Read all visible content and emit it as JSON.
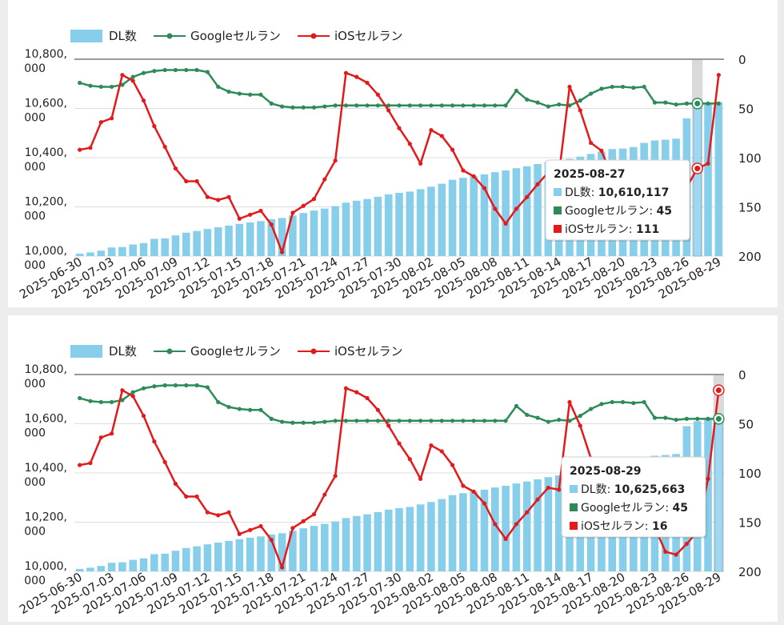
{
  "legend": {
    "dl": "DL数",
    "google": "Googleセルラン",
    "ios": "iOSセルラン"
  },
  "colors": {
    "bar": "#87ceeb",
    "google": "#2e8b57",
    "ios": "#e31a1c",
    "grid": "#dddddd"
  },
  "chart_data": [
    {
      "type": "bar",
      "combo": true,
      "x": [
        "2025-06-30",
        "2025-07-01",
        "2025-07-02",
        "2025-07-03",
        "2025-07-04",
        "2025-07-05",
        "2025-07-06",
        "2025-07-07",
        "2025-07-08",
        "2025-07-09",
        "2025-07-10",
        "2025-07-11",
        "2025-07-12",
        "2025-07-13",
        "2025-07-14",
        "2025-07-15",
        "2025-07-16",
        "2025-07-17",
        "2025-07-18",
        "2025-07-19",
        "2025-07-20",
        "2025-07-21",
        "2025-07-22",
        "2025-07-23",
        "2025-07-24",
        "2025-07-25",
        "2025-07-26",
        "2025-07-27",
        "2025-07-28",
        "2025-07-29",
        "2025-07-30",
        "2025-07-31",
        "2025-08-01",
        "2025-08-02",
        "2025-08-03",
        "2025-08-04",
        "2025-08-05",
        "2025-08-06",
        "2025-08-07",
        "2025-08-08",
        "2025-08-09",
        "2025-08-10",
        "2025-08-11",
        "2025-08-12",
        "2025-08-13",
        "2025-08-14",
        "2025-08-15",
        "2025-08-16",
        "2025-08-17",
        "2025-08-18",
        "2025-08-19",
        "2025-08-20",
        "2025-08-21",
        "2025-08-22",
        "2025-08-23",
        "2025-08-24",
        "2025-08-25",
        "2025-08-26",
        "2025-08-27",
        "2025-08-28",
        "2025-08-29"
      ],
      "x_ticks": [
        "2025-06-30",
        "2025-07-03",
        "2025-07-06",
        "2025-07-09",
        "2025-07-12",
        "2025-07-15",
        "2025-07-18",
        "2025-07-21",
        "2025-07-24",
        "2025-07-27",
        "2025-07-30",
        "2025-08-02",
        "2025-08-05",
        "2025-08-08",
        "2025-08-11",
        "2025-08-14",
        "2025-08-17",
        "2025-08-20",
        "2025-08-23",
        "2025-08-26",
        "2025-08-29"
      ],
      "y_left": {
        "ticks": [
          "10,000,\n000",
          "10,200,\n000",
          "10,400,\n000",
          "10,600,\n000",
          "10,800,\n000"
        ],
        "range": [
          10000000,
          10800000
        ]
      },
      "y_right": {
        "ticks": [
          "0",
          "50",
          "100",
          "150",
          "200"
        ],
        "range": [
          0,
          200
        ],
        "inverted": true
      },
      "series": [
        {
          "name": "DL数",
          "type": "bar",
          "axis": "left",
          "values": [
            10010000,
            10015000,
            10022000,
            10035000,
            10037000,
            10047000,
            10053000,
            10070000,
            10072000,
            10084000,
            10095000,
            10102000,
            10110000,
            10117000,
            10124000,
            10131000,
            10137000,
            10142000,
            10150000,
            10155000,
            10165000,
            10175000,
            10185000,
            10193000,
            10203000,
            10217000,
            10225000,
            10232000,
            10241000,
            10251000,
            10257000,
            10262000,
            10272000,
            10282000,
            10294000,
            10310000,
            10318000,
            10325000,
            10332000,
            10341000,
            10348000,
            10357000,
            10365000,
            10374000,
            10383000,
            10390000,
            10395000,
            10404000,
            10415000,
            10424000,
            10435000,
            10437000,
            10443000,
            10460000,
            10470000,
            10473000,
            10477000,
            10560000,
            10610117,
            10618000,
            10625663
          ]
        },
        {
          "name": "Googleセルラン",
          "type": "line",
          "axis": "right",
          "values": [
            24,
            27,
            28,
            28,
            26,
            18,
            14,
            12,
            11,
            11,
            11,
            11,
            13,
            28,
            33,
            35,
            36,
            36,
            45,
            48,
            49,
            49,
            49,
            48,
            47,
            47,
            47,
            47,
            47,
            47,
            47,
            47,
            47,
            47,
            47,
            47,
            47,
            47,
            47,
            47,
            47,
            32,
            41,
            44,
            48,
            46,
            47,
            42,
            35,
            30,
            28,
            28,
            29,
            28,
            44,
            44,
            46,
            45,
            45,
            45,
            45
          ]
        },
        {
          "name": "iOSセルラン",
          "type": "line",
          "axis": "right",
          "values": [
            92,
            90,
            64,
            60,
            16,
            22,
            42,
            68,
            89,
            111,
            124,
            124,
            140,
            143,
            140,
            162,
            158,
            154,
            168,
            196,
            156,
            149,
            142,
            122,
            103,
            14,
            18,
            24,
            36,
            52,
            70,
            86,
            106,
            72,
            78,
            92,
            113,
            119,
            131,
            152,
            167,
            152,
            140,
            127,
            115,
            117,
            28,
            52,
            85,
            93,
            120,
            135,
            148,
            150,
            155,
            170,
            180,
            130,
            111,
            106,
            16
          ]
        }
      ],
      "tooltip": {
        "date": "2025-08-27",
        "rows": [
          {
            "label": "DL数",
            "value": "10,610,117"
          },
          {
            "label": "Googleセルラン",
            "value": "45"
          },
          {
            "label": "iOSセルラン",
            "value": "111"
          }
        ]
      }
    },
    {
      "type": "bar",
      "combo": true,
      "x": [
        "2025-06-30",
        "2025-07-01",
        "2025-07-02",
        "2025-07-03",
        "2025-07-04",
        "2025-07-05",
        "2025-07-06",
        "2025-07-07",
        "2025-07-08",
        "2025-07-09",
        "2025-07-10",
        "2025-07-11",
        "2025-07-12",
        "2025-07-13",
        "2025-07-14",
        "2025-07-15",
        "2025-07-16",
        "2025-07-17",
        "2025-07-18",
        "2025-07-19",
        "2025-07-20",
        "2025-07-21",
        "2025-07-22",
        "2025-07-23",
        "2025-07-24",
        "2025-07-25",
        "2025-07-26",
        "2025-07-27",
        "2025-07-28",
        "2025-07-29",
        "2025-07-30",
        "2025-07-31",
        "2025-08-01",
        "2025-08-02",
        "2025-08-03",
        "2025-08-04",
        "2025-08-05",
        "2025-08-06",
        "2025-08-07",
        "2025-08-08",
        "2025-08-09",
        "2025-08-10",
        "2025-08-11",
        "2025-08-12",
        "2025-08-13",
        "2025-08-14",
        "2025-08-15",
        "2025-08-16",
        "2025-08-17",
        "2025-08-18",
        "2025-08-19",
        "2025-08-20",
        "2025-08-21",
        "2025-08-22",
        "2025-08-23",
        "2025-08-24",
        "2025-08-25",
        "2025-08-26",
        "2025-08-27",
        "2025-08-28",
        "2025-08-29"
      ],
      "x_ticks": [
        "2025-06-30",
        "2025-07-03",
        "2025-07-06",
        "2025-07-09",
        "2025-07-12",
        "2025-07-15",
        "2025-07-18",
        "2025-07-21",
        "2025-07-24",
        "2025-07-27",
        "2025-07-30",
        "2025-08-02",
        "2025-08-05",
        "2025-08-08",
        "2025-08-11",
        "2025-08-14",
        "2025-08-17",
        "2025-08-20",
        "2025-08-23",
        "2025-08-26",
        "2025-08-29"
      ],
      "y_left": {
        "ticks": [
          "10,000,\n000",
          "10,200,\n000",
          "10,400,\n000",
          "10,600,\n000",
          "10,800,\n000"
        ],
        "range": [
          10000000,
          10800000
        ]
      },
      "y_right": {
        "ticks": [
          "0",
          "50",
          "100",
          "150",
          "200"
        ],
        "range": [
          0,
          200
        ],
        "inverted": true
      },
      "series": [
        {
          "name": "DL数",
          "type": "bar",
          "axis": "left",
          "values": [
            10010000,
            10015000,
            10022000,
            10035000,
            10037000,
            10047000,
            10053000,
            10070000,
            10072000,
            10084000,
            10095000,
            10102000,
            10110000,
            10117000,
            10124000,
            10131000,
            10137000,
            10142000,
            10150000,
            10155000,
            10165000,
            10175000,
            10185000,
            10193000,
            10203000,
            10217000,
            10225000,
            10232000,
            10241000,
            10251000,
            10257000,
            10262000,
            10272000,
            10282000,
            10294000,
            10310000,
            10318000,
            10325000,
            10332000,
            10341000,
            10348000,
            10357000,
            10365000,
            10374000,
            10383000,
            10390000,
            10395000,
            10404000,
            10415000,
            10424000,
            10435000,
            10437000,
            10443000,
            10460000,
            10470000,
            10473000,
            10477000,
            10590000,
            10610117,
            10618000,
            10625663
          ]
        },
        {
          "name": "Googleセルラン",
          "type": "line",
          "axis": "right",
          "values": [
            24,
            27,
            28,
            28,
            26,
            18,
            14,
            12,
            11,
            11,
            11,
            11,
            13,
            28,
            33,
            35,
            36,
            36,
            45,
            48,
            49,
            49,
            49,
            48,
            47,
            47,
            47,
            47,
            47,
            47,
            47,
            47,
            47,
            47,
            47,
            47,
            47,
            47,
            47,
            47,
            47,
            32,
            41,
            44,
            48,
            46,
            47,
            42,
            35,
            30,
            28,
            28,
            29,
            28,
            44,
            44,
            46,
            45,
            45,
            45,
            45
          ]
        },
        {
          "name": "iOSセルラン",
          "type": "line",
          "axis": "right",
          "values": [
            92,
            90,
            64,
            60,
            16,
            22,
            42,
            68,
            89,
            111,
            124,
            124,
            140,
            143,
            140,
            162,
            158,
            154,
            168,
            196,
            156,
            149,
            142,
            122,
            103,
            14,
            18,
            24,
            36,
            52,
            70,
            86,
            106,
            72,
            78,
            92,
            113,
            119,
            131,
            152,
            167,
            152,
            140,
            127,
            115,
            117,
            28,
            52,
            85,
            93,
            120,
            135,
            148,
            150,
            155,
            180,
            183,
            172,
            160,
            106,
            16
          ]
        }
      ],
      "tooltip": {
        "date": "2025-08-29",
        "rows": [
          {
            "label": "DL数",
            "value": "10,625,663"
          },
          {
            "label": "Googleセルラン",
            "value": "45"
          },
          {
            "label": "iOSセルラン",
            "value": "16"
          }
        ]
      }
    }
  ]
}
